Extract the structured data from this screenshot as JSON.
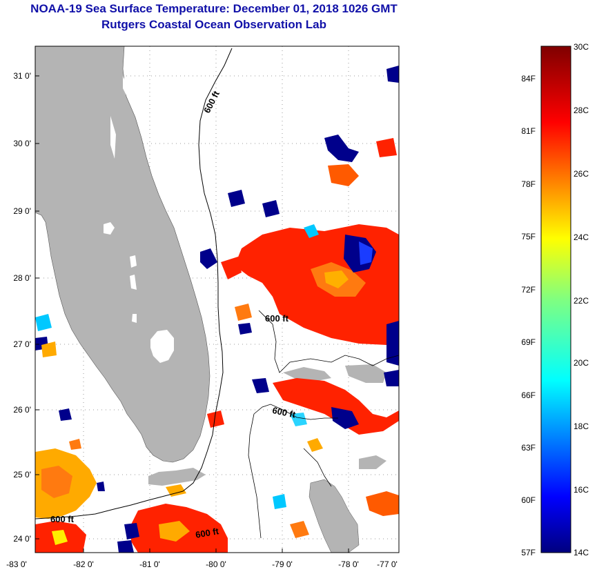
{
  "title": "NOAA-19 Sea Surface Temperature:  December 01, 2018 1026 GMT",
  "subtitle": "Rutgers Coastal Ocean Observation Lab",
  "map": {
    "lat_ticks": [
      "31 0'",
      "30 0'",
      "29 0'",
      "28 0'",
      "27 0'",
      "26 0'",
      "25 0'",
      "24 0'"
    ],
    "lon_ticks": [
      "-83 0'",
      "-82 0'",
      "-81 0'",
      "-80 0'",
      "-79 0'",
      "-78 0'",
      "-77 0'"
    ],
    "isobath_labels": [
      "600 ft",
      "600 ft",
      "600 ft",
      "600 ft",
      "600 ft"
    ],
    "colors": {
      "land": "#b4b4b4",
      "warm": "#ff2200",
      "cold": "#00008b"
    }
  },
  "colorbar": {
    "fahrenheit": [
      "84F",
      "81F",
      "78F",
      "75F",
      "72F",
      "69F",
      "66F",
      "63F",
      "60F",
      "57F"
    ],
    "celsius": [
      "30C",
      "28C",
      "26C",
      "24C",
      "22C",
      "20C",
      "18C",
      "16C",
      "14C"
    ]
  }
}
